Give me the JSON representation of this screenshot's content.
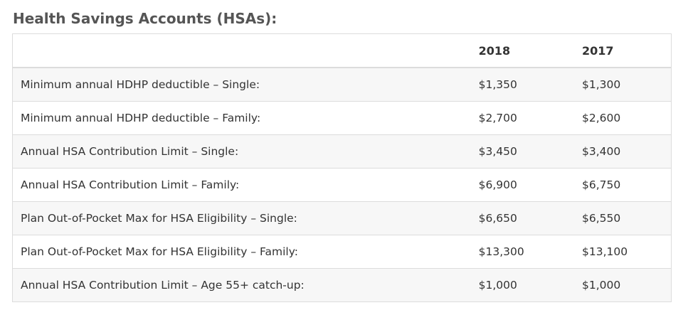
{
  "heading": "Health Savings Accounts (HSAs):",
  "table": {
    "columns": [
      "",
      "2018",
      "2017"
    ],
    "rows": [
      {
        "label": "Minimum annual HDHP deductible – Single:",
        "y2018": "$1,350",
        "y2017": "$1,300"
      },
      {
        "label": "Minimum annual HDHP deductible – Family:",
        "y2018": "$2,700",
        "y2017": "$2,600"
      },
      {
        "label": "Annual HSA Contribution Limit – Single:",
        "y2018": "$3,450",
        "y2017": "$3,400"
      },
      {
        "label": "Annual HSA Contribution Limit – Family:",
        "y2018": "$6,900",
        "y2017": "$6,750"
      },
      {
        "label": "Plan Out-of-Pocket Max for HSA Eligibility – Single:",
        "y2018": "$6,650",
        "y2017": "$6,550"
      },
      {
        "label": "Plan Out-of-Pocket Max for HSA Eligibility – Family:",
        "y2018": "$13,300",
        "y2017": "$13,100"
      },
      {
        "label": "Annual HSA Contribution Limit – Age 55+ catch-up:",
        "y2018": "$1,000",
        "y2017": "$1,000"
      }
    ]
  }
}
